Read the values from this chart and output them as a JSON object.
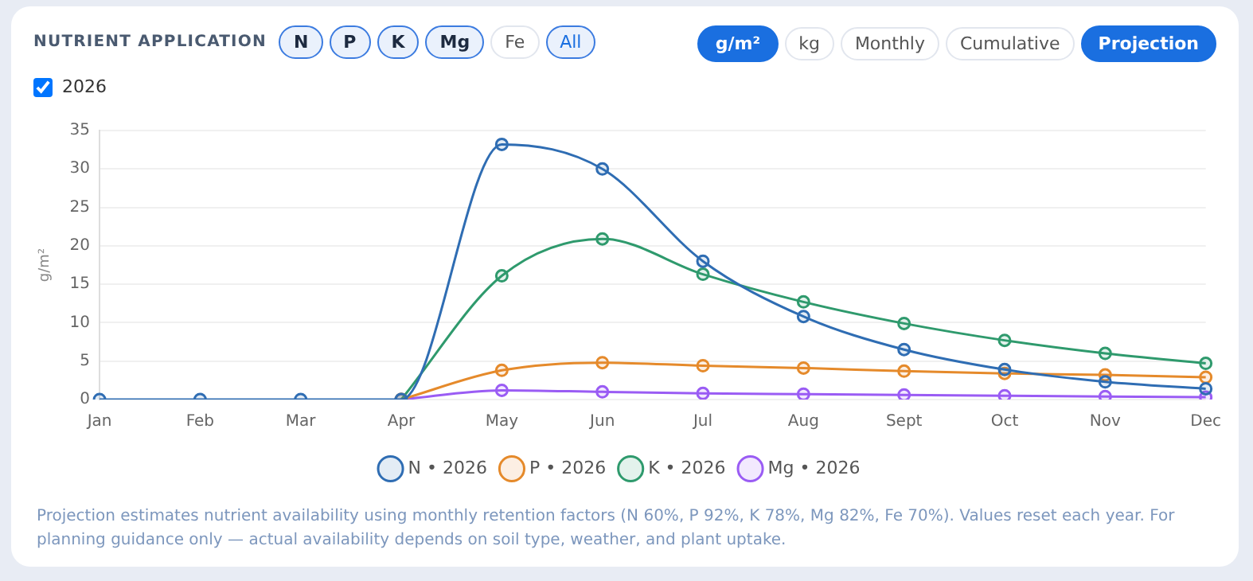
{
  "chart_data": {
    "type": "line",
    "title": "NUTRIENT APPLICATION",
    "ylabel": "g/m²",
    "categories": [
      "Jan",
      "Feb",
      "Mar",
      "Apr",
      "May",
      "Jun",
      "Jul",
      "Aug",
      "Sept",
      "Oct",
      "Nov",
      "Dec"
    ],
    "series": [
      {
        "name": "N • 2026",
        "color": "#2f6db3",
        "values": [
          0,
          0,
          0,
          0,
          33.2,
          30,
          18,
          10.8,
          6.5,
          3.9,
          2.3,
          1.4
        ]
      },
      {
        "name": "P • 2026",
        "color": "#e58a2b",
        "values": [
          null,
          null,
          null,
          0,
          3.8,
          4.8,
          4.4,
          4.1,
          3.7,
          3.4,
          3.2,
          2.9
        ]
      },
      {
        "name": "K • 2026",
        "color": "#2f9a6d",
        "values": [
          null,
          null,
          null,
          0,
          16.1,
          20.9,
          16.3,
          12.7,
          9.9,
          7.7,
          6.0,
          4.7
        ]
      },
      {
        "name": "Mg • 2026",
        "color": "#9a5cf4",
        "values": [
          null,
          null,
          null,
          0,
          1.2,
          1.0,
          0.8,
          0.7,
          0.6,
          0.5,
          0.4,
          0.3
        ]
      }
    ],
    "ylim": [
      0,
      35
    ],
    "yticks": [
      0,
      5,
      10,
      15,
      20,
      25,
      30,
      35
    ],
    "grid": "y",
    "legend": "bottom",
    "marker": "circle",
    "line_style": "solid",
    "annotations": [
      "N",
      "P",
      "K",
      "Mg",
      "Fe",
      "All",
      "g/m²",
      "kg",
      "Monthly",
      "Cumulative",
      "Projection",
      "2026",
      "Projection estimates nutrient availability using monthly retention factors (N 60%, P 92%, K 78%, Mg 82%, Fe 70%). Values reset each year. For planning guidance only — actual availability depends on soil type, weather, and plant uptake."
    ]
  }
}
